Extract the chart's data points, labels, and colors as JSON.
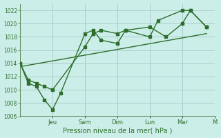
{
  "bg_color": "#cceee8",
  "grid_color": "#aacccc",
  "line_color": "#2d6e2d",
  "marker_color": "#2d6e2d",
  "xlabel": "Pression niveau de la mer( hPa )",
  "ylim": [
    1006,
    1023
  ],
  "yticks": [
    1006,
    1008,
    1010,
    1012,
    1014,
    1016,
    1018,
    1020,
    1022
  ],
  "xlim": [
    0,
    12
  ],
  "day_positions": [
    2,
    4,
    6,
    8,
    10,
    12
  ],
  "day_labels": [
    "Jeu",
    "Sam",
    "Dim",
    "Lun",
    "Mar",
    "M"
  ],
  "series1_x": [
    0.0,
    0.5,
    1.0,
    1.5,
    2.0,
    4.0,
    4.5,
    5.0,
    6.0,
    6.5,
    8.0,
    9.0,
    10.0,
    10.5,
    11.5
  ],
  "series1_y": [
    1014.0,
    1011.5,
    1011.0,
    1010.5,
    1010.0,
    1016.5,
    1018.5,
    1019.0,
    1018.5,
    1019.0,
    1019.5,
    1018.0,
    1020.0,
    1022.0,
    1019.5
  ],
  "series2_x": [
    0.0,
    0.5,
    1.0,
    1.5,
    2.0,
    2.5,
    4.0,
    4.5,
    5.0,
    6.0,
    6.5,
    8.0,
    8.5,
    10.0,
    10.5,
    11.5
  ],
  "series2_y": [
    1014.0,
    1011.0,
    1010.5,
    1008.5,
    1007.0,
    1009.5,
    1018.5,
    1019.0,
    1017.5,
    1017.0,
    1019.0,
    1018.0,
    1020.5,
    1022.0,
    1022.0,
    1019.5
  ],
  "series3_x": [
    0.0,
    11.5
  ],
  "series3_y": [
    1013.5,
    1018.5
  ]
}
